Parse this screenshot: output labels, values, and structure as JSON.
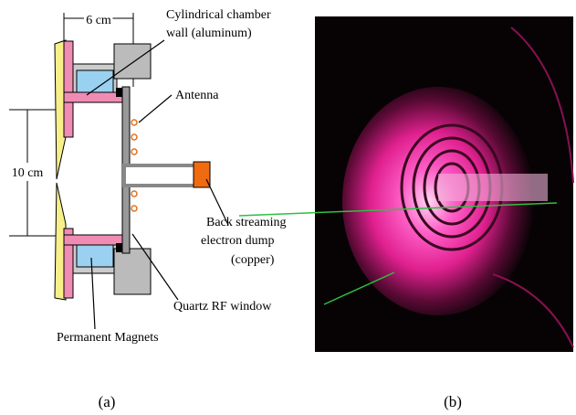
{
  "figure": {
    "diagram": {
      "dimension_width": "6 cm",
      "dimension_height": "10 cm",
      "labels": [
        {
          "lines": [
            "Cylindrical chamber",
            "wall (aluminum)"
          ]
        },
        {
          "lines": [
            "Antenna"
          ]
        },
        {
          "lines": [
            "Back streaming",
            "electron dump",
            "(copper)"
          ]
        },
        {
          "lines": [
            "Quartz RF window"
          ]
        },
        {
          "lines": [
            "Permanent Magnets"
          ]
        }
      ]
    },
    "captions": [
      "(a)",
      "(b)"
    ]
  }
}
